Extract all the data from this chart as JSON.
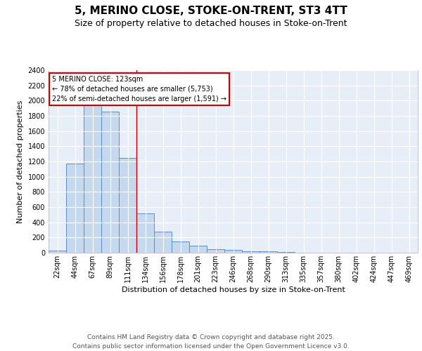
{
  "title1": "5, MERINO CLOSE, STOKE-ON-TRENT, ST3 4TT",
  "title2": "Size of property relative to detached houses in Stoke-on-Trent",
  "xlabel": "Distribution of detached houses by size in Stoke-on-Trent",
  "ylabel": "Number of detached properties",
  "categories": [
    "22sqm",
    "44sqm",
    "67sqm",
    "89sqm",
    "111sqm",
    "134sqm",
    "156sqm",
    "178sqm",
    "201sqm",
    "223sqm",
    "246sqm",
    "268sqm",
    "290sqm",
    "313sqm",
    "335sqm",
    "357sqm",
    "380sqm",
    "402sqm",
    "424sqm",
    "447sqm",
    "469sqm"
  ],
  "values": [
    25,
    1175,
    2000,
    1860,
    1245,
    520,
    275,
    150,
    90,
    45,
    40,
    18,
    14,
    5,
    4,
    3,
    2,
    2,
    2,
    2,
    2
  ],
  "bar_color": "#c5d8ee",
  "bar_edge_color": "#5b8ec4",
  "background_color": "#e8eef8",
  "grid_color": "#ffffff",
  "annotation_text": "5 MERINO CLOSE: 123sqm\n← 78% of detached houses are smaller (5,753)\n22% of semi-detached houses are larger (1,591) →",
  "annotation_box_color": "#ffffff",
  "annotation_box_edge": "#cc0000",
  "vline_x_index": 4.5,
  "ylim": [
    0,
    2400
  ],
  "yticks": [
    0,
    200,
    400,
    600,
    800,
    1000,
    1200,
    1400,
    1600,
    1800,
    2000,
    2200,
    2400
  ],
  "footer_text": "Contains HM Land Registry data © Crown copyright and database right 2025.\nContains public sector information licensed under the Open Government Licence v3.0.",
  "title_fontsize": 11,
  "subtitle_fontsize": 9,
  "axis_label_fontsize": 8,
  "tick_fontsize": 7,
  "footer_fontsize": 6.5,
  "ann_fontsize": 7
}
